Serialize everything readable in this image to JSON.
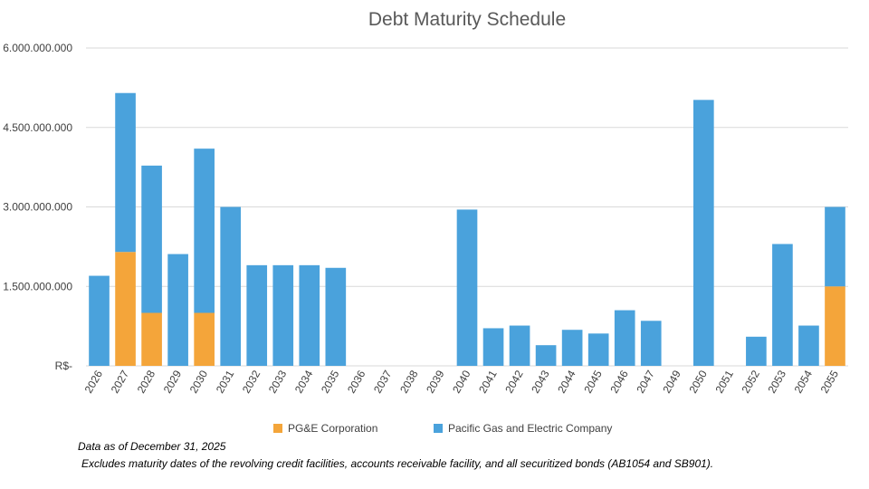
{
  "colors": {
    "corporation": "#F4A53A",
    "utility": "#4AA2DC",
    "grid": "#D9D9D9"
  },
  "legend": {
    "corporation_label": "PG&E Corporation",
    "utility_label": "Pacific Gas and Electric Company"
  },
  "notes": {
    "as_of": "Data as of December 31, 2025",
    "exclusions": "Excludes maturity dates of the revolving credit facilities, accounts receivable facility, and all securitized bonds (AB1054 and SB901)."
  },
  "chart_data": {
    "type": "bar",
    "stacked": true,
    "title": "Debt Maturity Schedule",
    "xlabel": "",
    "ylabel": "",
    "ylim": [
      0,
      6000000000
    ],
    "yticks": [
      0,
      1500000000,
      3000000000,
      4500000000,
      6000000000
    ],
    "ytick_labels": [
      "R$-",
      "1.500.000.000",
      "3.000.000.000",
      "4.500.000.000",
      "6.000.000.000"
    ],
    "grid": true,
    "legend_position": "bottom",
    "categories": [
      "2026",
      "2027",
      "2028",
      "2029",
      "2030",
      "2031",
      "2032",
      "2033",
      "2034",
      "2035",
      "2036",
      "2037",
      "2038",
      "2039",
      "2040",
      "2041",
      "2042",
      "2043",
      "2044",
      "2045",
      "2046",
      "2047",
      "2049",
      "2050",
      "2051",
      "2052",
      "2053",
      "2054",
      "2055"
    ],
    "series": [
      {
        "name": "PG&E Corporation",
        "values": [
          0,
          2150000000,
          1000000000,
          0,
          1000000000,
          0,
          0,
          0,
          0,
          0,
          0,
          0,
          0,
          0,
          0,
          0,
          0,
          0,
          0,
          0,
          0,
          0,
          0,
          0,
          0,
          0,
          0,
          0,
          1500000000
        ]
      },
      {
        "name": "Pacific Gas and Electric Company",
        "values": [
          1700000000,
          3000000000,
          2780000000,
          2110000000,
          3100000000,
          3000000000,
          1900000000,
          1900000000,
          1900000000,
          1850000000,
          0,
          0,
          0,
          0,
          2950000000,
          710000000,
          760000000,
          390000000,
          680000000,
          610000000,
          1050000000,
          850000000,
          0,
          5020000000,
          0,
          550000000,
          2300000000,
          760000000,
          1500000000
        ]
      }
    ]
  }
}
